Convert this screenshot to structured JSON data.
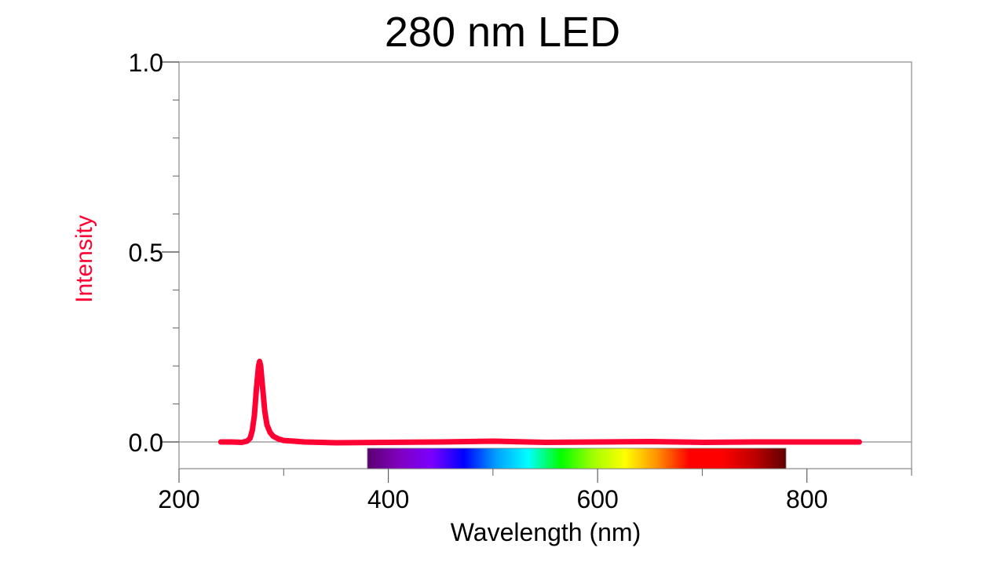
{
  "chart_data": {
    "type": "line",
    "title": "280 nm LED",
    "xlabel": "Wavelength (nm)",
    "ylabel": "Intensity",
    "xlim": [
      200,
      900
    ],
    "ylim": [
      -0.07,
      1.0
    ],
    "xticks": [
      200,
      400,
      600,
      800
    ],
    "xtick_labels": [
      "200",
      "400",
      "600",
      "800"
    ],
    "x_minor_ticks": [
      300,
      500,
      700,
      900
    ],
    "yticks": [
      0.0,
      0.5,
      1.0
    ],
    "ytick_labels": [
      "0.0",
      "0.5",
      "1.0"
    ],
    "y_minor_ticks": [
      0.1,
      0.2,
      0.3,
      0.4,
      0.6,
      0.7,
      0.8,
      0.9
    ],
    "grid": false,
    "legend": null,
    "series": [
      {
        "name": "Intensity",
        "color": "#ff0033",
        "x": [
          240,
          250,
          260,
          265,
          268,
          270,
          272,
          274,
          276,
          277,
          278,
          280,
          282,
          284,
          287,
          290,
          295,
          300,
          310,
          320,
          350,
          400,
          450,
          500,
          550,
          600,
          650,
          700,
          750,
          800,
          850
        ],
        "y": [
          0.0,
          0.0,
          -0.001,
          0.002,
          0.01,
          0.03,
          0.07,
          0.14,
          0.2,
          0.212,
          0.2,
          0.14,
          0.08,
          0.045,
          0.025,
          0.015,
          0.008,
          0.004,
          0.002,
          0.0,
          -0.002,
          -0.001,
          0.0,
          0.002,
          -0.001,
          0.0,
          0.001,
          -0.001,
          0.0,
          0.0,
          0.0
        ]
      }
    ],
    "annotations": {
      "peak_wavelength_nm": 277,
      "peak_intensity": 0.21,
      "visible_spectrum_bar": {
        "from_nm": 380,
        "to_nm": 780,
        "stops": [
          "#5c0070",
          "#8000c0",
          "#7a00ff",
          "#0000ff",
          "#00a0ff",
          "#00ffff",
          "#00ff00",
          "#a0ff00",
          "#ffff00",
          "#ff9000",
          "#ff0000",
          "#ff0000",
          "#c00000",
          "#600000"
        ]
      }
    }
  },
  "colors": {
    "curve": "#ff0033",
    "axis": "#a0a0a0",
    "ylabel": "#ff0033"
  }
}
